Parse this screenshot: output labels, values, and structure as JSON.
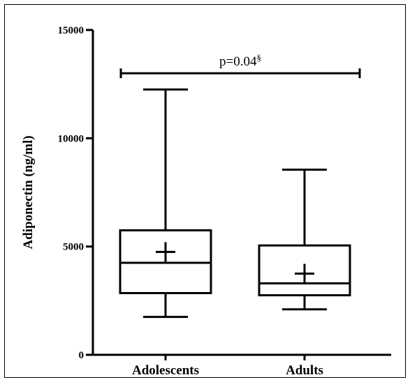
{
  "chart_data": {
    "type": "boxplot",
    "title": "",
    "xlabel": "",
    "ylabel": "Adiponectin (ng/ml)",
    "ylim": [
      0,
      15000
    ],
    "yticks": [
      0,
      5000,
      10000,
      15000
    ],
    "ytick_labels": [
      "0",
      "5000",
      "10000",
      "15000"
    ],
    "categories": [
      "Adolescents",
      "Adults"
    ],
    "boxes": [
      {
        "category": "Adolescents",
        "min": 1750,
        "q1": 2850,
        "median": 4250,
        "q3": 5750,
        "max": 12250,
        "mean": 4750
      },
      {
        "category": "Adults",
        "min": 2100,
        "q1": 2750,
        "median": 3300,
        "q3": 5050,
        "max": 8550,
        "mean": 3750
      }
    ],
    "annotation": {
      "text": "p=0.04",
      "superscript": "§",
      "between": [
        "Adolescents",
        "Adults"
      ],
      "y": 13000
    },
    "grid": false,
    "legend": "none",
    "colors": {
      "stroke": "#000000",
      "background": "#ffffff"
    }
  }
}
